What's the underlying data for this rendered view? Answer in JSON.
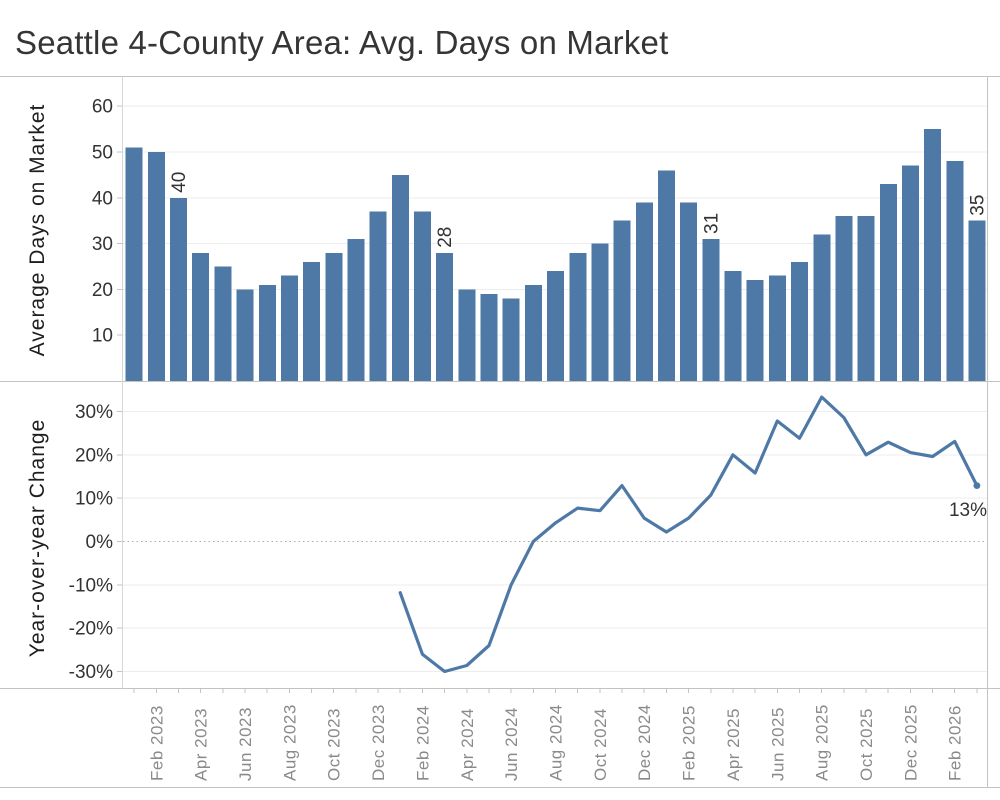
{
  "title": "Seattle 4-County Area: Avg. Days on Market",
  "colors": {
    "bar": "#4e79a7",
    "line": "#4e79a7",
    "title_text": "#353535",
    "axis_title_text": "#1e1e1e",
    "y_tick_label": "#333333",
    "x_tick_label": "#8a8a8a",
    "annotation": "#333333",
    "gridline": "#ededed",
    "zero_line": "#ababab",
    "border": "#c3c3c3",
    "axis_line": "#d6d6d6"
  },
  "x_axis": {
    "tick_labels": [
      "Feb 2023",
      "Apr 2023",
      "Jun 2023",
      "Aug 2023",
      "Oct 2023",
      "Dec 2023",
      "Feb 2024",
      "Apr 2024",
      "Jun 2024",
      "Aug 2024",
      "Oct 2024",
      "Dec 2024",
      "Feb 2025",
      "Apr 2025",
      "Jun 2025",
      "Aug 2025",
      "Oct 2025",
      "Dec 2025",
      "Feb 2026"
    ]
  },
  "chart_data": [
    {
      "type": "bar",
      "ylabel": "Average Days on Market",
      "ylim": [
        0,
        63
      ],
      "ytick_values": [
        10,
        20,
        30,
        40,
        50,
        60
      ],
      "ytick_labels": [
        "10",
        "20",
        "30",
        "40",
        "50",
        "60"
      ],
      "grid": true,
      "x": [
        "Jan 2023",
        "Feb 2023",
        "Mar 2023",
        "Apr 2023",
        "May 2023",
        "Jun 2023",
        "Jul 2023",
        "Aug 2023",
        "Sep 2023",
        "Oct 2023",
        "Nov 2023",
        "Dec 2023",
        "Jan 2024",
        "Feb 2024",
        "Mar 2024",
        "Apr 2024",
        "May 2024",
        "Jun 2024",
        "Jul 2024",
        "Aug 2024",
        "Sep 2024",
        "Oct 2024",
        "Nov 2024",
        "Dec 2024",
        "Jan 2025",
        "Feb 2025",
        "Mar 2025",
        "Apr 2025",
        "May 2025",
        "Jun 2025",
        "Jul 2025",
        "Aug 2025",
        "Sep 2025",
        "Oct 2025",
        "Nov 2025",
        "Dec 2025",
        "Jan 2026",
        "Feb 2026",
        "Mar 2026"
      ],
      "values": [
        51,
        50,
        40,
        28,
        25,
        20,
        21,
        23,
        26,
        28,
        31,
        37,
        45,
        37,
        28,
        20,
        19,
        18,
        21,
        24,
        28,
        30,
        35,
        39,
        46,
        39,
        31,
        24,
        22,
        23,
        26,
        32,
        36,
        36,
        43,
        47,
        55,
        48,
        35
      ],
      "annotations": [
        {
          "index": 2,
          "label": "40"
        },
        {
          "index": 14,
          "label": "28"
        },
        {
          "index": 26,
          "label": "31"
        },
        {
          "index": 38,
          "label": "35"
        }
      ]
    },
    {
      "type": "line",
      "ylabel": "Year-over-year Change",
      "ylim": [
        -34,
        34
      ],
      "ytick_values": [
        30,
        20,
        10,
        0,
        -10,
        -20,
        -30
      ],
      "ytick_labels": [
        "30%",
        "20%",
        "10%",
        "0%",
        "-10%",
        "-20%",
        "-30%"
      ],
      "grid": true,
      "zero_line_style": "dotted",
      "x": [
        "Jan 2024",
        "Feb 2024",
        "Mar 2024",
        "Apr 2024",
        "May 2024",
        "Jun 2024",
        "Jul 2024",
        "Aug 2024",
        "Sep 2024",
        "Oct 2024",
        "Nov 2024",
        "Dec 2024",
        "Jan 2025",
        "Feb 2025",
        "Mar 2025",
        "Apr 2025",
        "May 2025",
        "Jun 2025",
        "Jul 2025",
        "Aug 2025",
        "Sep 2025",
        "Oct 2025",
        "Nov 2025",
        "Dec 2025",
        "Jan 2026",
        "Feb 2026",
        "Mar 2026"
      ],
      "values": [
        -11.8,
        -26.0,
        -30.0,
        -28.6,
        -24.0,
        -10.0,
        0.0,
        4.3,
        7.7,
        7.1,
        12.9,
        5.4,
        2.2,
        5.4,
        10.7,
        20.0,
        15.8,
        27.8,
        23.8,
        33.3,
        28.6,
        20.0,
        22.9,
        20.5,
        19.6,
        23.1,
        12.9
      ],
      "end_label": "13%"
    }
  ]
}
